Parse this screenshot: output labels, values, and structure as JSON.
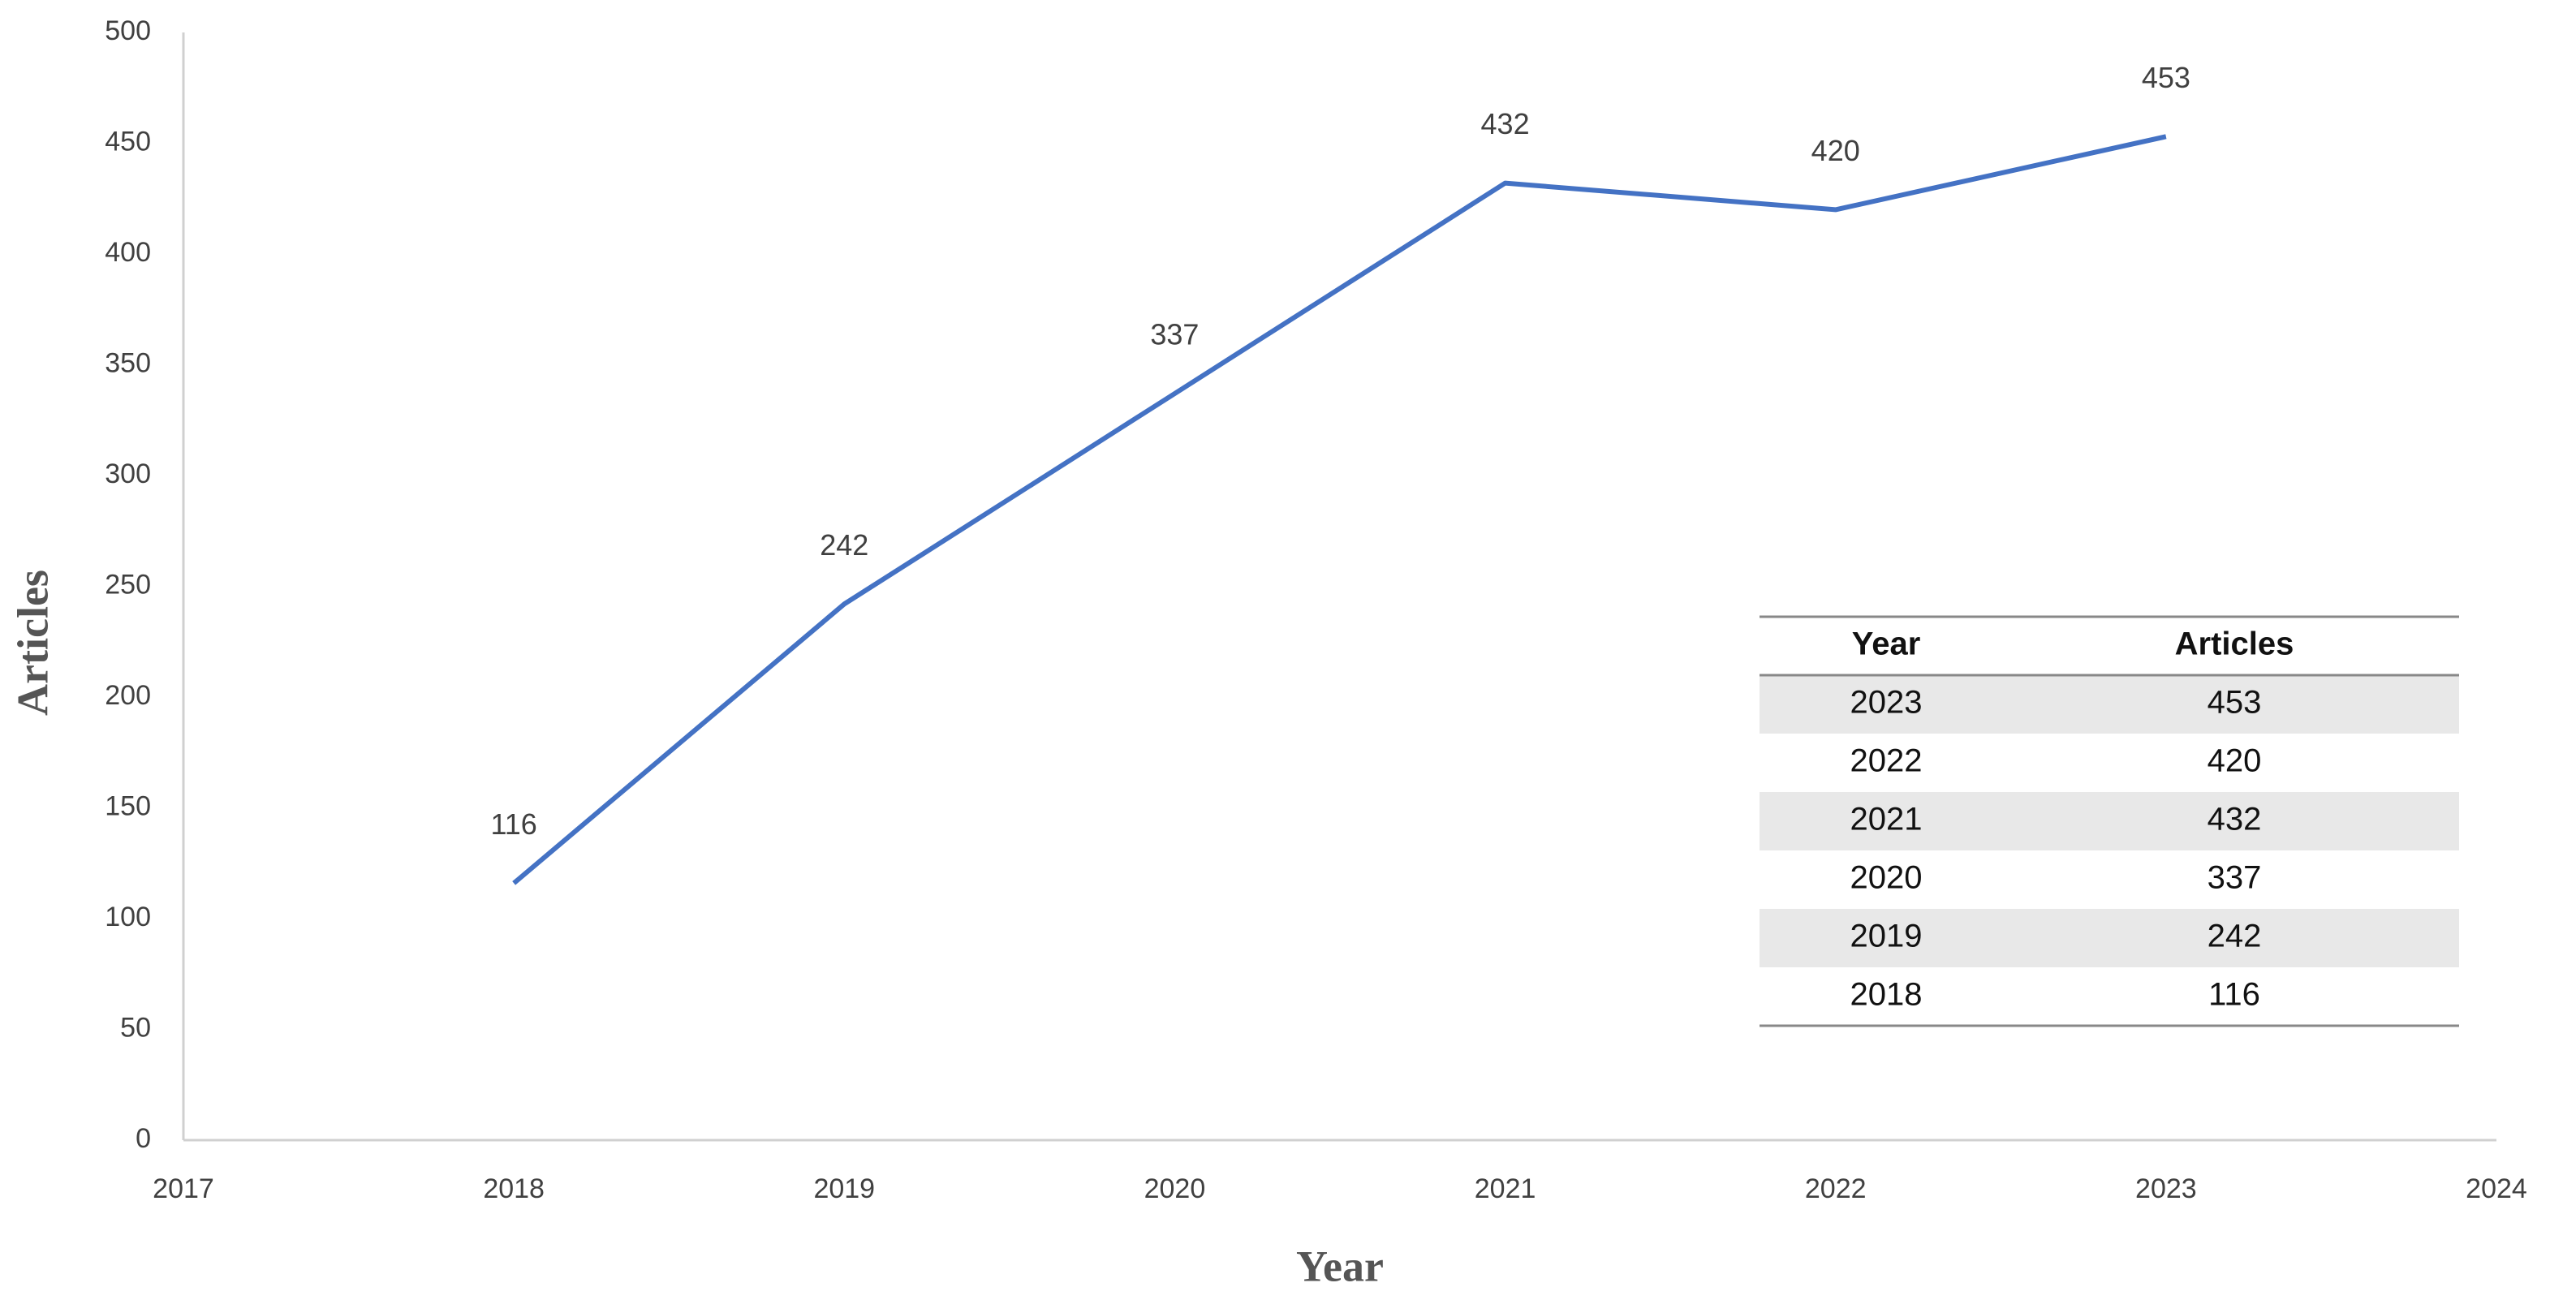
{
  "chart_data": {
    "type": "line",
    "x_label": "Year",
    "y_label": "Articles",
    "x": [
      2018,
      2019,
      2020,
      2021,
      2022,
      2023
    ],
    "values": [
      116,
      242,
      337,
      432,
      420,
      453
    ],
    "color": "#4472c4",
    "xlim": [
      2017,
      2024
    ],
    "xticks": [
      2017,
      2018,
      2019,
      2020,
      2021,
      2022,
      2023,
      2024
    ],
    "ylim": [
      0,
      500
    ],
    "yticks": [
      0,
      50,
      100,
      150,
      200,
      250,
      300,
      350,
      400,
      450,
      500
    ],
    "grid": false,
    "data_labels": true
  },
  "table": {
    "columns": [
      "Year",
      "Articles"
    ],
    "rows": [
      [
        2023,
        453
      ],
      [
        2022,
        420
      ],
      [
        2021,
        432
      ],
      [
        2020,
        337
      ],
      [
        2019,
        242
      ],
      [
        2018,
        116
      ]
    ]
  }
}
